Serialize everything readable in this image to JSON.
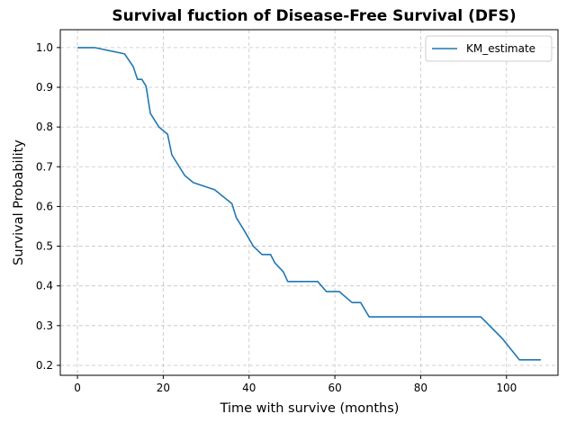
{
  "chart_data": {
    "type": "line",
    "title": "Survival fuction of Disease-Free Survival (DFS)",
    "xlabel": "Time with survive (months)",
    "ylabel": "Survival Probability",
    "xlim": [
      -4,
      112
    ],
    "ylim": [
      0.175,
      1.045
    ],
    "xticks": [
      0,
      20,
      40,
      60,
      80,
      100
    ],
    "yticks": [
      0.2,
      0.3,
      0.4,
      0.5,
      0.6,
      0.7,
      0.8,
      0.9,
      1.0
    ],
    "grid": true,
    "legend_position": "top-right",
    "colors": {
      "series": "#1f77b4",
      "grid": "#c4c4c4",
      "frame": "#000000"
    },
    "series": [
      {
        "name": "KM_estimate",
        "x": [
          0,
          4,
          11,
          13,
          14,
          15,
          16,
          17,
          19,
          21,
          22,
          25,
          27,
          32,
          36,
          37,
          39,
          41,
          43,
          45,
          46,
          48,
          49,
          51,
          56,
          58,
          61,
          64,
          66,
          68,
          80,
          94,
          99,
          103,
          108
        ],
        "y": [
          1.0,
          1.0,
          0.984,
          0.952,
          0.92,
          0.92,
          0.903,
          0.834,
          0.8,
          0.782,
          0.73,
          0.678,
          0.66,
          0.642,
          0.607,
          0.572,
          0.537,
          0.5,
          0.479,
          0.479,
          0.458,
          0.435,
          0.411,
          0.411,
          0.411,
          0.386,
          0.386,
          0.358,
          0.358,
          0.322,
          0.322,
          0.322,
          0.268,
          0.214,
          0.214
        ]
      }
    ]
  }
}
